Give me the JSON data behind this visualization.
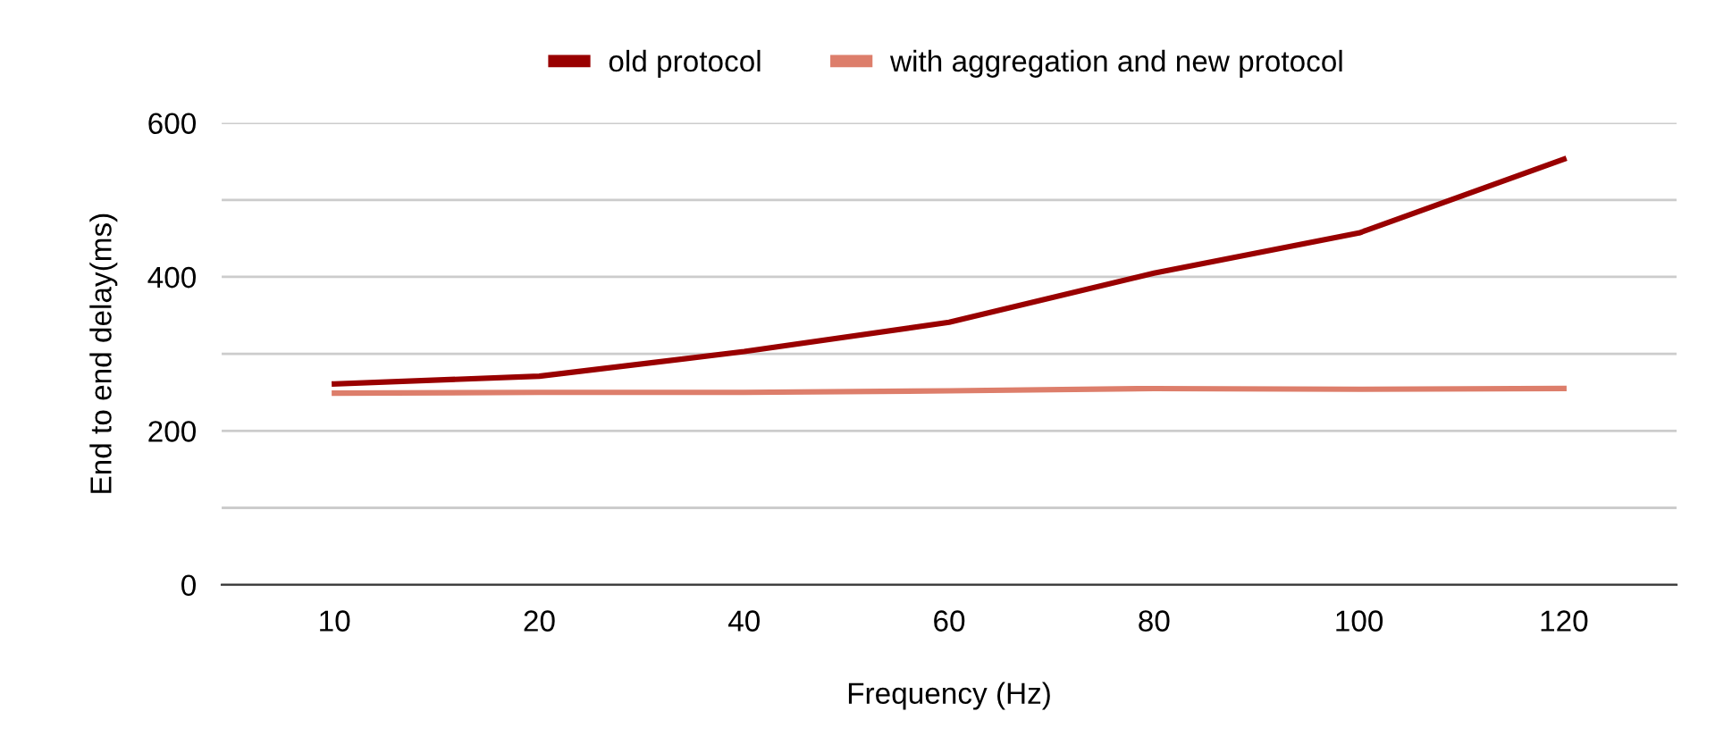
{
  "chart_data": {
    "type": "line",
    "xlabel": "Frequency (Hz)",
    "ylabel": "End to end delay(ms)",
    "categories": [
      "10",
      "20",
      "40",
      "60",
      "80",
      "100",
      "120"
    ],
    "series": [
      {
        "name": "old protocol",
        "color": "#990000",
        "values": [
          261,
          271,
          303,
          341,
          405,
          457,
          553
        ]
      },
      {
        "name": "with aggregation and new protocol",
        "color": "#dd7e6b",
        "values": [
          249,
          250,
          250,
          252,
          255,
          254,
          255
        ]
      }
    ],
    "ylim": [
      0,
      600
    ],
    "yticks": [
      0,
      {
        "value": 100,
        "label": null
      },
      200,
      {
        "value": 300,
        "label": null
      },
      400,
      {
        "value": 500,
        "label": null
      },
      600
    ],
    "grid": "y",
    "legend": "top",
    "marker": "none",
    "line_style": "solid"
  }
}
